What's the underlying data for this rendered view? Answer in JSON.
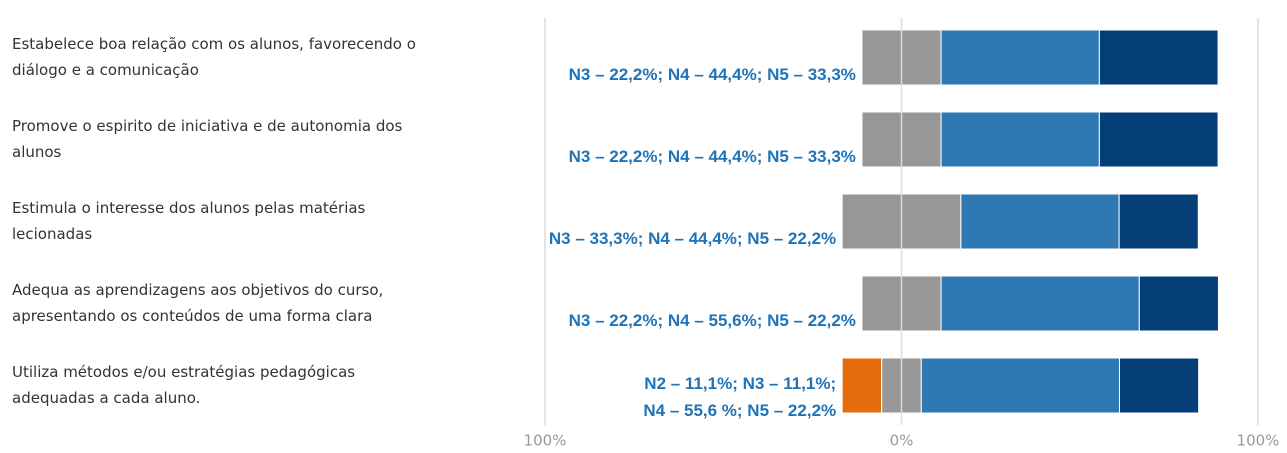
{
  "chart_data": {
    "type": "diverging_bar",
    "categories": [
      [
        "Estabelece boa relação com os alunos, favorecendo o",
        "diálogo e a comunicação"
      ],
      [
        "Promove o espirito de iniciativa e de autonomia dos",
        "alunos"
      ],
      [
        "Estimula o interesse dos alunos pelas matérias",
        "lecionadas"
      ],
      [
        "Adequa as aprendizagens aos objetivos do curso,",
        "apresentando os conteúdos de uma forma clara"
      ],
      [
        "Utiliza métodos e/ou estratégias pedagógicas",
        "adequadas a cada aluno."
      ]
    ],
    "series": [
      {
        "color": "#e46c0a",
        "values": [
          0,
          0,
          0,
          0,
          11.1
        ]
      },
      {
        "color": "#979797",
        "values": [
          22.2,
          22.2,
          33.3,
          22.2,
          11.1
        ]
      },
      {
        "color": "#2e79b3",
        "values": [
          44.4,
          44.4,
          44.4,
          55.6,
          55.6
        ]
      },
      {
        "color": "#063f77",
        "values": [
          33.3,
          33.3,
          22.2,
          22.2,
          22.2
        ]
      }
    ],
    "annotations": [
      [
        "N3 – 22,2%; N4 – 44,4%; N5 – 33,3%"
      ],
      [
        "N3 – 22,2%; N4 – 44,4%; N5 – 33,3%"
      ],
      [
        "N3 – 33,3%; N4 – 44,4%; N5 – 22,2%"
      ],
      [
        "N3 – 22,2%; N4 – 55,6%; N5 – 22,2%"
      ],
      [
        "N2 – 11,1%; N3 – 11,1%;",
        "N4 – 55,6 %; N5 – 22,2%"
      ]
    ],
    "xlim": [
      -100,
      100
    ],
    "xticks": [
      {
        "value": -100,
        "label": "100%"
      },
      {
        "value": 0,
        "label": "0%"
      },
      {
        "value": 100,
        "label": "100%"
      }
    ],
    "neutral_series": 1,
    "grid": true
  }
}
